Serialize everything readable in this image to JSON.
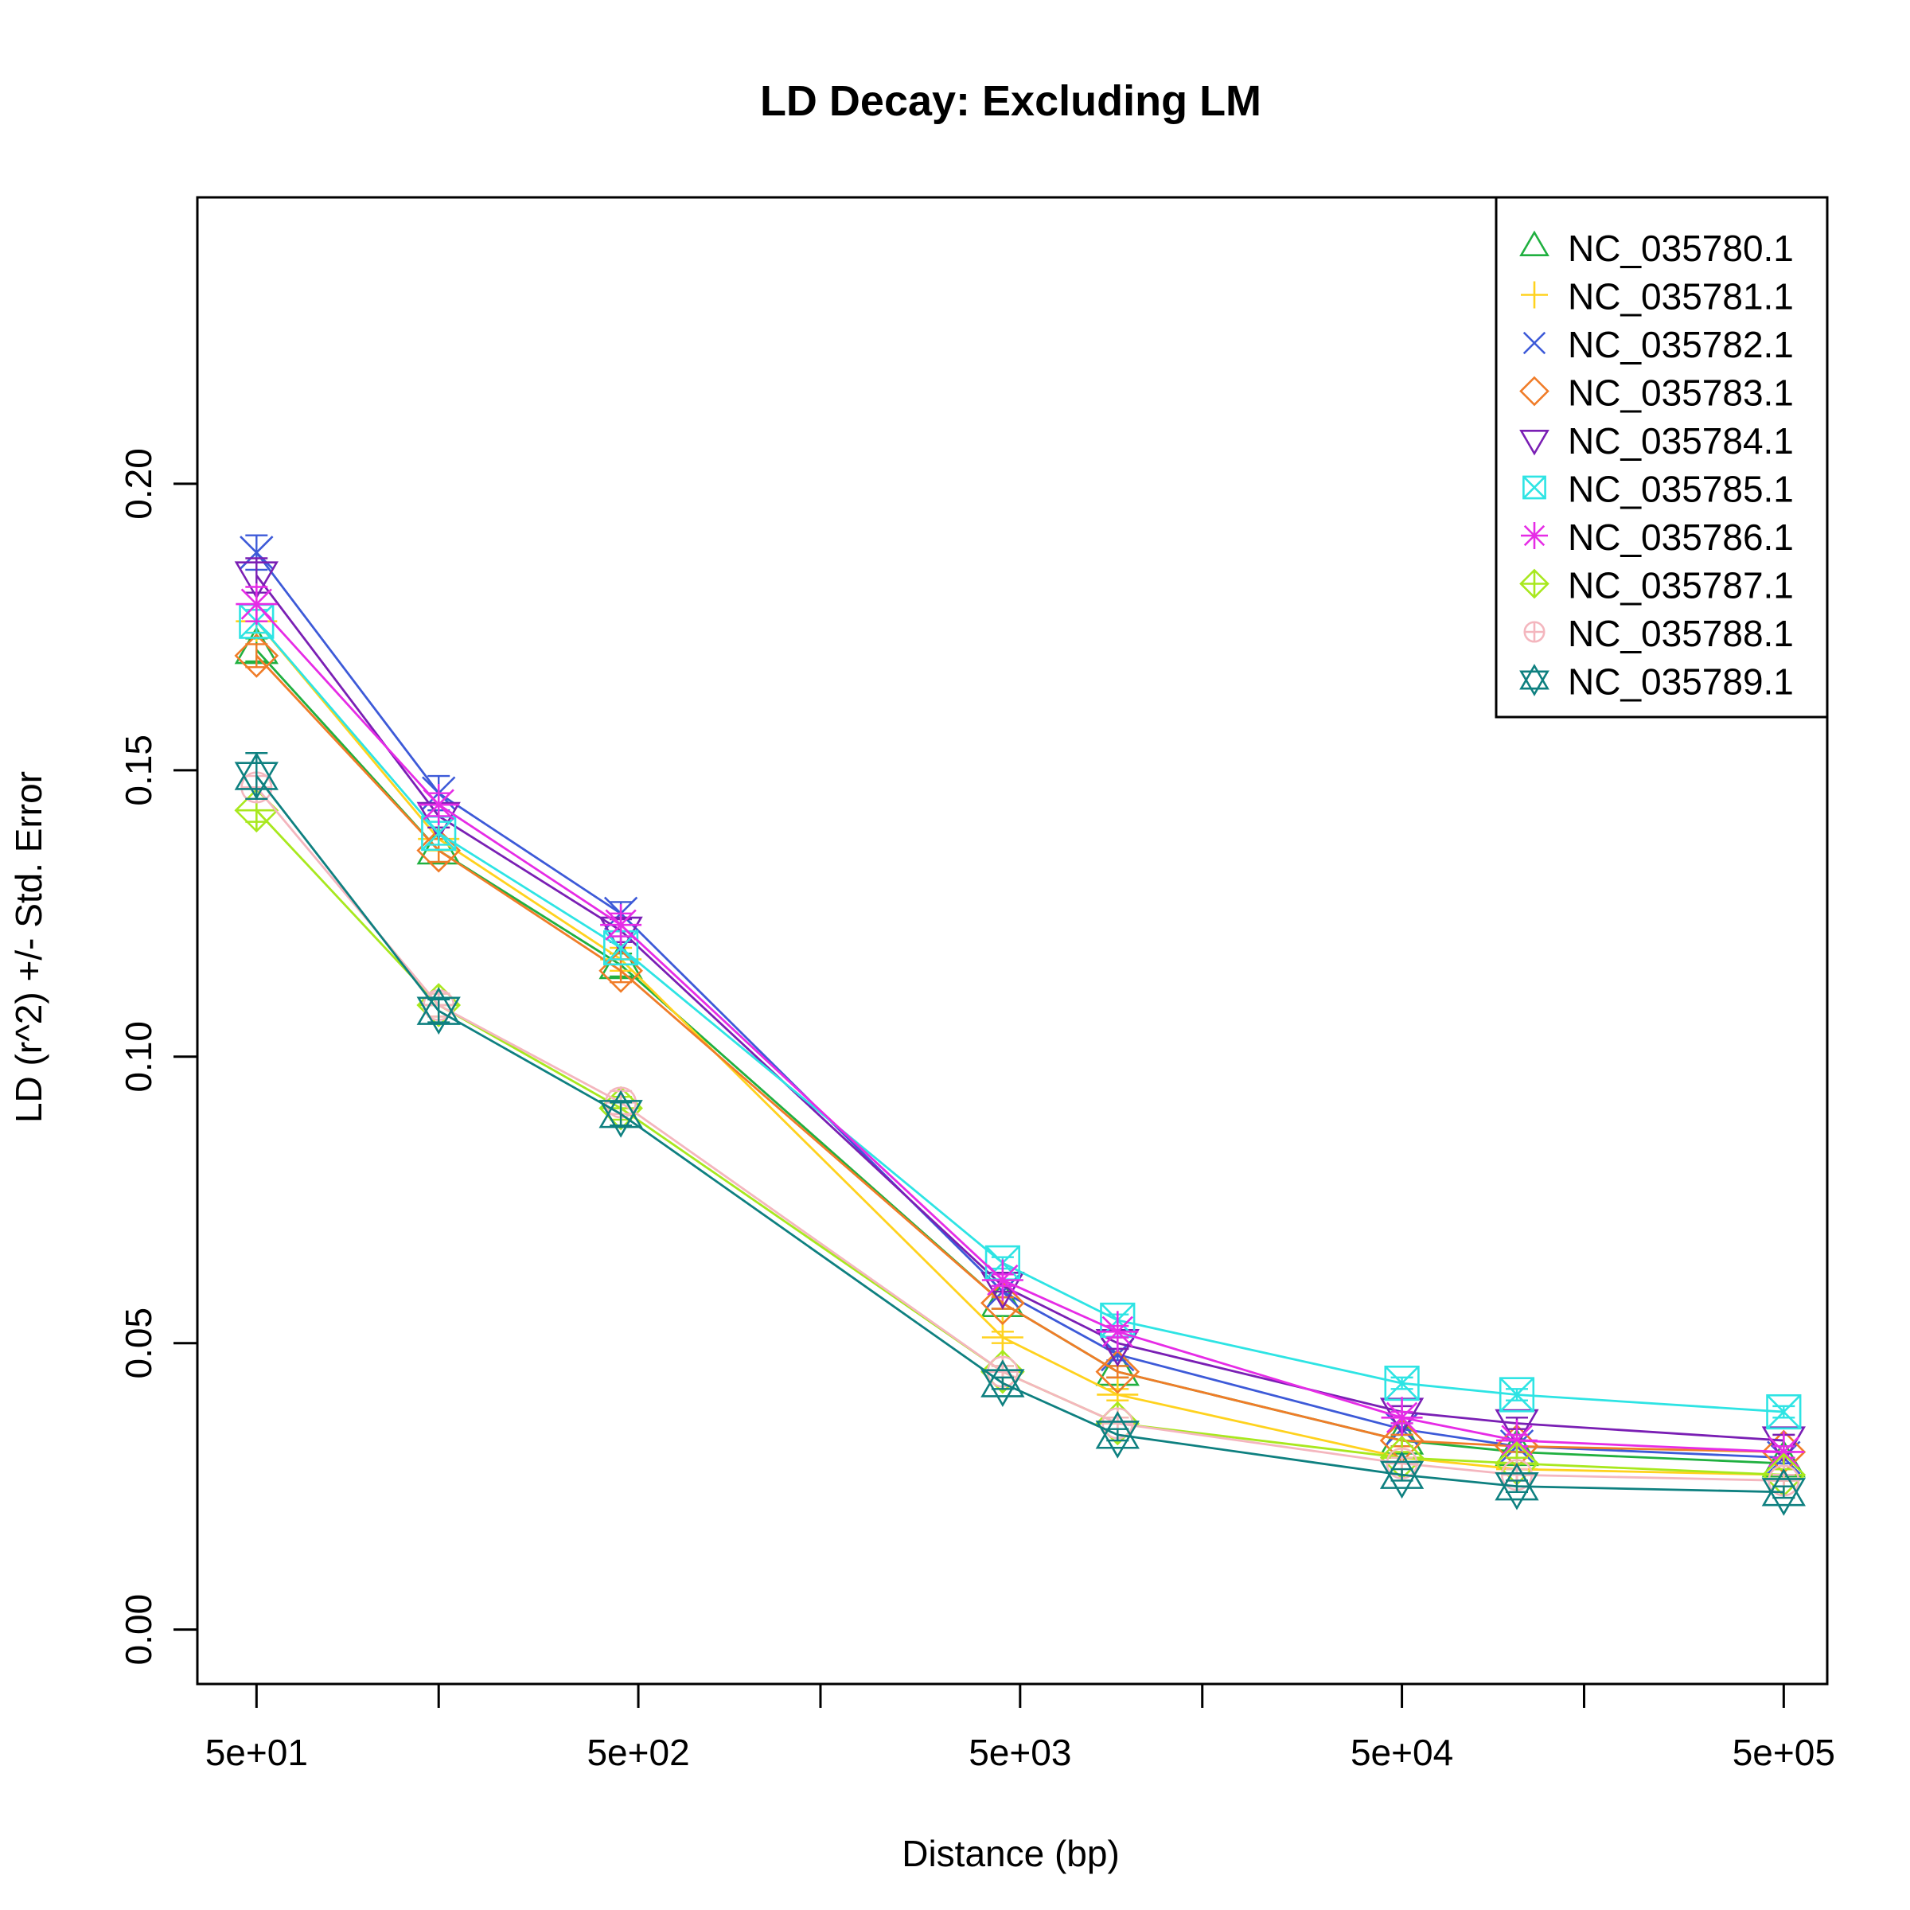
{
  "chart_data": {
    "type": "line",
    "title": "LD Decay: Excluding LM",
    "xlabel": "Distance (bp)",
    "ylabel": "LD (r^2) +/- Std. Error",
    "x_scale": "log10",
    "xlim": [
      35,
      650000
    ],
    "ylim": [
      -0.0095,
      0.25
    ],
    "x_ticks": [
      50,
      150,
      500,
      1500,
      5000,
      15000,
      50000,
      150000,
      500000
    ],
    "x_tick_labels": [
      {
        "value": 50,
        "label": "5e+01"
      },
      {
        "value": 500,
        "label": "5e+02"
      },
      {
        "value": 5000,
        "label": "5e+03"
      },
      {
        "value": 50000,
        "label": "5e+04"
      },
      {
        "value": 500000,
        "label": "5e+05"
      }
    ],
    "y_ticks": [
      {
        "value": 0.0,
        "label": "0.00"
      },
      {
        "value": 0.05,
        "label": "0.05"
      },
      {
        "value": 0.1,
        "label": "0.10"
      },
      {
        "value": 0.15,
        "label": "0.15"
      },
      {
        "value": 0.2,
        "label": "0.20"
      }
    ],
    "grid": false,
    "legend_position": "top-right",
    "x": [
      50,
      150,
      450,
      4500,
      9000,
      50000,
      100000,
      500000
    ],
    "series": [
      {
        "name": "NC_035780.1",
        "color": "#20B040",
        "marker": "triangle-up",
        "values": [
          0.171,
          0.136,
          0.116,
          0.057,
          0.045,
          0.033,
          0.031,
          0.029
        ],
        "se": [
          0.002,
          0.002,
          0.002,
          0.001,
          0.001,
          0.001,
          0.001,
          0.001
        ]
      },
      {
        "name": "NC_035781.1",
        "color": "#FFD21E",
        "marker": "plus",
        "values": [
          0.176,
          0.138,
          0.117,
          0.051,
          0.041,
          0.03,
          0.028,
          0.027
        ],
        "se": [
          0.002,
          0.002,
          0.002,
          0.001,
          0.001,
          0.001,
          0.001,
          0.001
        ]
      },
      {
        "name": "NC_035782.1",
        "color": "#3D5AD8",
        "marker": "cross",
        "values": [
          0.188,
          0.146,
          0.125,
          0.059,
          0.048,
          0.035,
          0.032,
          0.03
        ],
        "se": [
          0.003,
          0.003,
          0.002,
          0.001,
          0.001,
          0.001,
          0.001,
          0.001
        ]
      },
      {
        "name": "NC_035783.1",
        "color": "#F07C28",
        "marker": "diamond",
        "values": [
          0.17,
          0.136,
          0.115,
          0.057,
          0.045,
          0.033,
          0.032,
          0.031
        ],
        "se": [
          0.002,
          0.002,
          0.002,
          0.001,
          0.001,
          0.001,
          0.001,
          0.001
        ]
      },
      {
        "name": "NC_035784.1",
        "color": "#7A1FB4",
        "marker": "triangle-down",
        "values": [
          0.184,
          0.142,
          0.122,
          0.06,
          0.05,
          0.038,
          0.036,
          0.033
        ],
        "se": [
          0.003,
          0.002,
          0.002,
          0.001,
          0.001,
          0.001,
          0.001,
          0.001
        ]
      },
      {
        "name": "NC_035785.1",
        "color": "#2EE4E4",
        "marker": "square-cross",
        "values": [
          0.176,
          0.139,
          0.119,
          0.064,
          0.054,
          0.043,
          0.041,
          0.038
        ],
        "se": [
          0.002,
          0.002,
          0.002,
          0.001,
          0.001,
          0.001,
          0.001,
          0.001
        ]
      },
      {
        "name": "NC_035786.1",
        "color": "#E62CE6",
        "marker": "asterisk",
        "values": [
          0.179,
          0.144,
          0.123,
          0.061,
          0.052,
          0.037,
          0.033,
          0.031
        ],
        "se": [
          0.003,
          0.002,
          0.002,
          0.001,
          0.001,
          0.001,
          0.001,
          0.001
        ]
      },
      {
        "name": "NC_035787.1",
        "color": "#A8E81E",
        "marker": "diamond-plus",
        "values": [
          0.143,
          0.109,
          0.091,
          0.045,
          0.036,
          0.03,
          0.029,
          0.027
        ],
        "se": [
          0.002,
          0.002,
          0.002,
          0.001,
          0.001,
          0.001,
          0.001,
          0.001
        ]
      },
      {
        "name": "NC_035788.1",
        "color": "#F4B6BE",
        "marker": "circle-plus",
        "values": [
          0.147,
          0.109,
          0.092,
          0.045,
          0.036,
          0.029,
          0.027,
          0.026
        ],
        "se": [
          0.002,
          0.002,
          0.002,
          0.001,
          0.001,
          0.001,
          0.001,
          0.001
        ]
      },
      {
        "name": "NC_035789.1",
        "color": "#0E8080",
        "marker": "star-of-david",
        "values": [
          0.149,
          0.108,
          0.09,
          0.043,
          0.034,
          0.027,
          0.025,
          0.024
        ],
        "se": [
          0.004,
          0.002,
          0.002,
          0.001,
          0.001,
          0.001,
          0.001,
          0.001
        ]
      }
    ]
  }
}
